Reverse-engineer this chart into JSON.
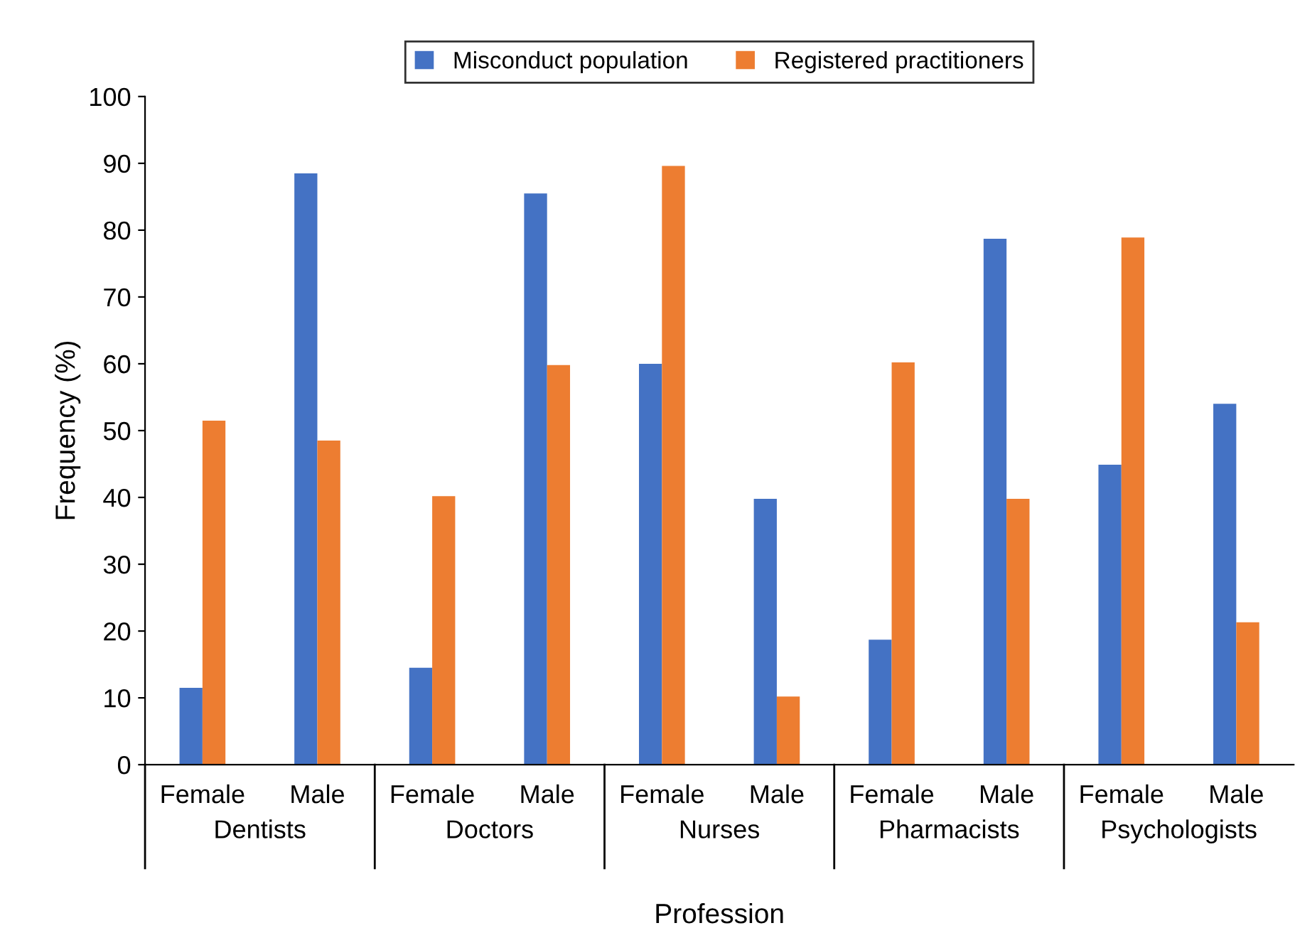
{
  "chart_data": {
    "type": "bar",
    "categories": [
      "Female",
      "Male",
      "Female",
      "Male",
      "Female",
      "Male",
      "Female",
      "Male",
      "Female",
      "Male"
    ],
    "annotations": [
      "Dentists",
      "Doctors",
      "Nurses",
      "Pharmacists",
      "Psychologists"
    ],
    "series": [
      {
        "name": "Misconduct population",
        "color": "#4472c4",
        "values": [
          11.5,
          88.5,
          14.5,
          85.5,
          60,
          39.8,
          18.7,
          78.7,
          44.9,
          54
        ]
      },
      {
        "name": "Registered practitioners",
        "color": "#ed7d31",
        "values": [
          51.5,
          48.5,
          40.2,
          59.8,
          89.6,
          10.2,
          60.2,
          39.8,
          78.9,
          21.3
        ]
      }
    ],
    "xlabel": "Profession",
    "ylabel": "Frequency (%)",
    "ylim": [
      0,
      100
    ],
    "yticks": [
      0,
      10,
      20,
      30,
      40,
      50,
      60,
      70,
      80,
      90,
      100
    ],
    "grid": false,
    "legend": "top"
  }
}
